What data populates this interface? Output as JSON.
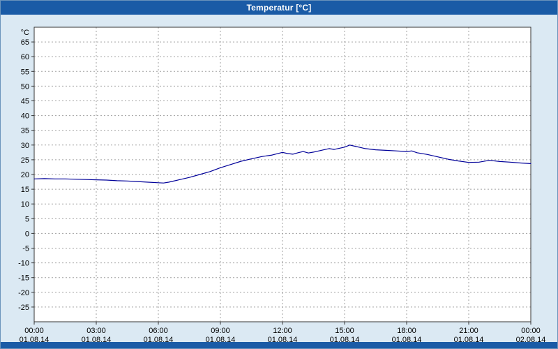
{
  "window": {
    "title": "Temperatur [°C]"
  },
  "colors": {
    "titlebar": "#1a5ba6",
    "background": "#dbe9f3",
    "plot_background": "#ffffff",
    "line": "#000099",
    "grid": "#a0a0a0",
    "axis_border": "#333333"
  },
  "chart_data": {
    "type": "line",
    "title": "Temperatur [°C]",
    "ylabel": "°C",
    "xlabel": "",
    "grid": true,
    "legend": "none",
    "ylim": [
      -30,
      70
    ],
    "xlim": [
      0,
      24
    ],
    "yticks": [
      65,
      60,
      55,
      50,
      45,
      40,
      35,
      30,
      25,
      20,
      15,
      10,
      5,
      0,
      -5,
      -10,
      -15,
      -20,
      -25
    ],
    "xticks": [
      {
        "hour": 0,
        "time": "00:00",
        "date": "01.08.14"
      },
      {
        "hour": 3,
        "time": "03:00",
        "date": "01.08.14"
      },
      {
        "hour": 6,
        "time": "06:00",
        "date": "01.08.14"
      },
      {
        "hour": 9,
        "time": "09:00",
        "date": "01.08.14"
      },
      {
        "hour": 12,
        "time": "12:00",
        "date": "01.08.14"
      },
      {
        "hour": 15,
        "time": "15:00",
        "date": "01.08.14"
      },
      {
        "hour": 18,
        "time": "18:00",
        "date": "01.08.14"
      },
      {
        "hour": 21,
        "time": "21:00",
        "date": "01.08.14"
      },
      {
        "hour": 24,
        "time": "00:00",
        "date": "02.08.14"
      }
    ],
    "series": [
      {
        "name": "Temperatur",
        "x_hours": [
          0,
          0.5,
          1,
          1.5,
          2,
          2.5,
          3,
          3.5,
          4,
          4.5,
          5,
          5.5,
          6,
          6.25,
          6.5,
          7,
          7.5,
          8,
          8.5,
          9,
          9.5,
          10,
          10.5,
          11,
          11.5,
          12,
          12.25,
          12.5,
          12.75,
          13,
          13.25,
          13.5,
          14,
          14.25,
          14.5,
          14.75,
          15,
          15.25,
          15.5,
          15.75,
          16,
          16.5,
          17,
          17.5,
          18,
          18.25,
          18.5,
          19,
          19.5,
          20,
          20.5,
          21,
          21.5,
          22,
          22.5,
          23,
          23.5,
          24
        ],
        "values": [
          18.5,
          18.6,
          18.5,
          18.5,
          18.4,
          18.3,
          18.2,
          18.1,
          17.9,
          17.8,
          17.6,
          17.4,
          17.2,
          17.1,
          17.4,
          18.2,
          19.0,
          20.0,
          21.0,
          22.3,
          23.4,
          24.5,
          25.3,
          26.1,
          26.6,
          27.5,
          27.1,
          26.9,
          27.4,
          27.8,
          27.3,
          27.6,
          28.4,
          28.8,
          28.5,
          28.9,
          29.3,
          30.0,
          29.6,
          29.2,
          28.8,
          28.4,
          28.2,
          28.0,
          27.8,
          28.0,
          27.4,
          26.8,
          26.0,
          25.2,
          24.6,
          24.1,
          24.2,
          24.8,
          24.4,
          24.2,
          23.9,
          23.7
        ]
      }
    ]
  }
}
